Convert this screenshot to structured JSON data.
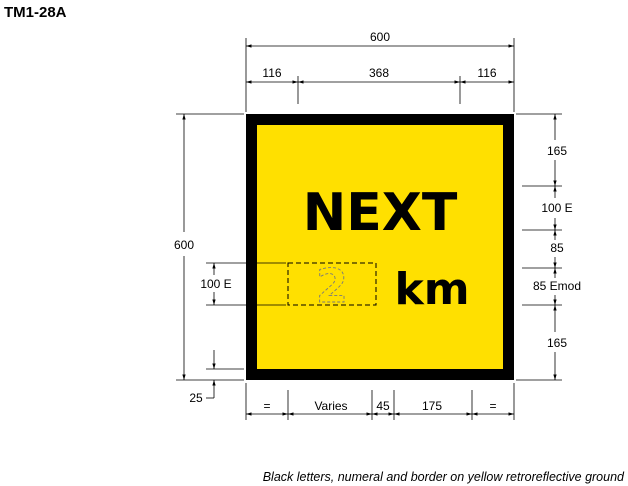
{
  "sign_code": "TM1-28A",
  "sign": {
    "line1": "NEXT",
    "numeral": "2",
    "unit": "km",
    "background_color": "#ffe000",
    "border_color": "#000000"
  },
  "dimensions": {
    "overall_width": "600",
    "border_left": "116",
    "middle_width": "368",
    "border_right": "116",
    "overall_height": "600",
    "numeral_height": "100 E",
    "bottom_offset": "25",
    "right_top": "165",
    "right_next": "100 E",
    "right_gap": "85",
    "right_km": "85 Emod",
    "right_bottom": "165",
    "bottom_eq_left": "=",
    "bottom_varies": "Varies",
    "bottom_gap": "45",
    "bottom_km": "175",
    "bottom_eq_right": "="
  },
  "footnote": "Black letters, numeral and border on yellow retroreflective ground"
}
